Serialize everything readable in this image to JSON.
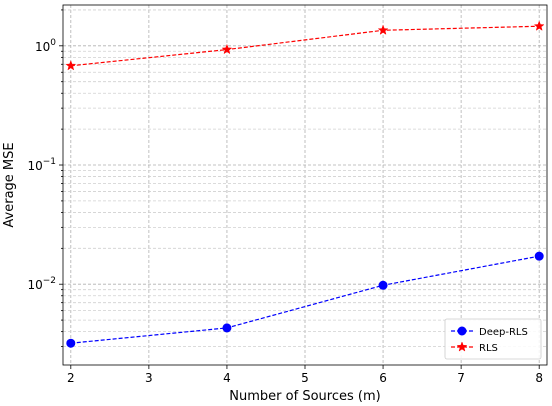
{
  "chart_data": {
    "type": "line",
    "xlabel": "Number of Sources (m)",
    "ylabel": "Average MSE",
    "x": [
      2,
      4,
      6,
      8
    ],
    "xlim": [
      1.9,
      8.1
    ],
    "xticks": [
      "2",
      "3",
      "4",
      "5",
      "6",
      "7",
      "8"
    ],
    "yscale": "log",
    "ylim": [
      0.0021,
      2.2
    ],
    "yticks": [
      {
        "value": 0.01,
        "base": "10",
        "exp": "−2"
      },
      {
        "value": 0.1,
        "base": "10",
        "exp": "−1"
      },
      {
        "value": 1,
        "base": "10",
        "exp": "0"
      }
    ],
    "grid": true,
    "legend": "lower-right",
    "series": [
      {
        "name": "Deep-RLS",
        "values": [
          0.0032,
          0.0043,
          0.0098,
          0.0172
        ],
        "color": "#0000ff",
        "marker": "circle",
        "linestyle": "dashed"
      },
      {
        "name": "RLS",
        "values": [
          0.68,
          0.93,
          1.35,
          1.46
        ],
        "color": "#ff0000",
        "marker": "star",
        "linestyle": "dashed"
      }
    ]
  }
}
